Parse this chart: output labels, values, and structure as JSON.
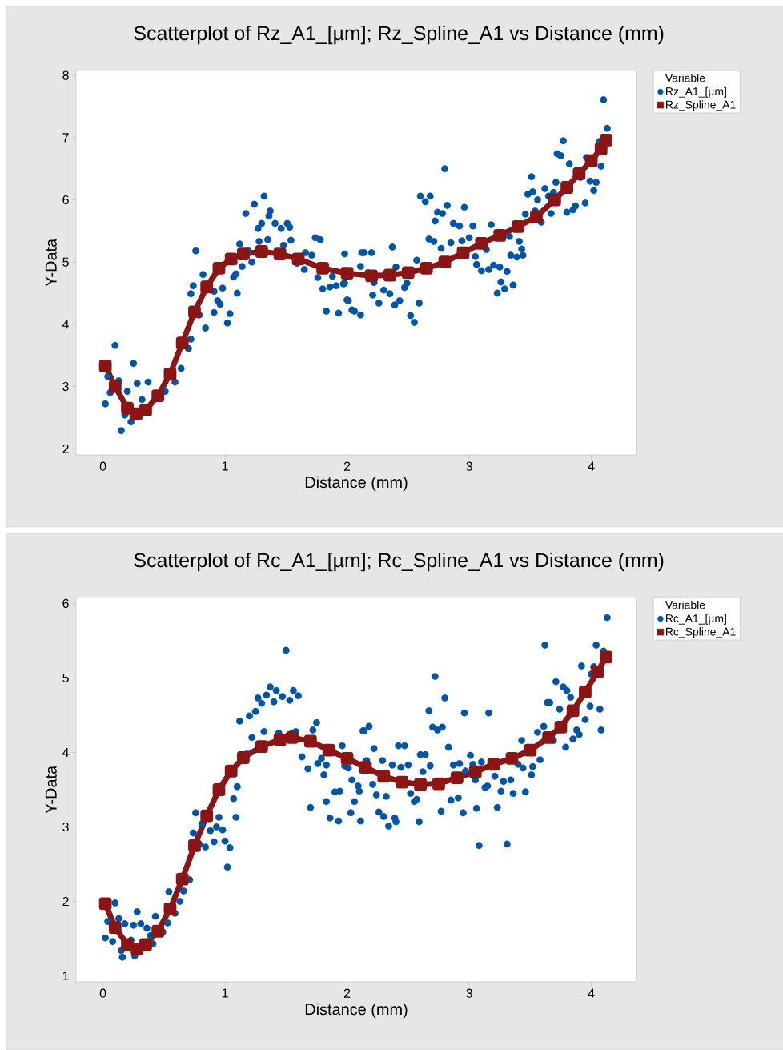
{
  "chart_data": [
    {
      "type": "scatter",
      "title": "Scatterplot of Rz_A1_[µm]; Rz_Spline_A1 vs Distance (mm)",
      "xlabel": "Distance (mm)",
      "ylabel": "Y-Data",
      "legend_title": "Variable",
      "legend": "top right",
      "xlim": [
        -0.22,
        4.37
      ],
      "ylim": [
        1.9,
        8.08
      ],
      "xticks": [
        0,
        1,
        2,
        3,
        4
      ],
      "yticks": [
        2,
        3,
        4,
        5,
        6,
        7,
        8
      ],
      "series": [
        {
          "name": "Rz_A1_[µm]",
          "color": "#0054a6",
          "marker": "circle",
          "x": [
            0.1,
            0.02,
            0.25,
            0.28,
            0.37,
            0.15,
            0.2,
            0.32,
            0.04,
            0.13,
            0.06,
            0.23,
            0.3,
            0.18,
            0.51,
            0.59,
            0.64,
            0.7,
            0.72,
            0.72,
            0.74,
            0.76,
            0.82,
            0.79,
            0.84,
            0.91,
            0.96,
            0.94,
            0.98,
            0.91,
            1.04,
            1.02,
            1.1,
            1.07,
            1.09,
            1.14,
            1.12,
            1.22,
            1.19,
            1.17,
            1.24,
            1.32,
            1.27,
            1.3,
            1.28,
            1.35,
            1.37,
            1.36,
            1.41,
            1.46,
            1.51,
            1.53,
            1.54,
            1.48,
            1.59,
            1.65,
            1.66,
            1.71,
            1.74,
            1.78,
            1.76,
            1.8,
            1.86,
            1.91,
            1.97,
            1.83,
            1.93,
            2.0,
            1.98,
            2.06,
            2.11,
            2.12,
            1.88,
            2.14,
            2.2,
            2.11,
            2.17,
            1.98,
            2.01,
            2.04,
            2.22,
            2.21,
            2.26,
            2.3,
            2.35,
            2.37,
            2.4,
            2.49,
            2.47,
            2.39,
            2.43,
            2.52,
            2.55,
            2.59,
            2.57,
            2.6,
            2.68,
            2.64,
            2.8,
            2.82,
            2.74,
            2.78,
            2.72,
            2.87,
            2.92,
            2.96,
            3.03,
            3.18,
            2.67,
            2.71,
            2.77,
            2.85,
            2.94,
            3.0,
            3.05,
            3.06,
            3.14,
            3.1,
            3.16,
            3.2,
            3.25,
            3.31,
            3.26,
            3.23,
            3.29,
            3.36,
            3.33,
            3.41,
            3.43,
            3.34,
            3.44,
            3.39,
            3.46,
            3.48,
            3.52,
            3.51,
            3.54,
            3.56,
            3.62,
            3.59,
            3.65,
            3.69,
            3.67,
            3.71,
            3.72,
            3.75,
            3.77,
            3.82,
            3.8,
            3.85,
            3.87,
            3.95,
            3.91,
            3.96,
            3.99,
            4.04,
            4.02,
            4.08,
            4.07,
            4.13,
            4.1
          ],
          "values": [
            3.66,
            2.72,
            3.37,
            3.05,
            3.07,
            2.29,
            2.92,
            2.79,
            3.16,
            3.09,
            2.9,
            2.43,
            2.51,
            2.54,
            2.92,
            3.07,
            3.29,
            3.61,
            3.76,
            4.49,
            4.62,
            5.18,
            4.8,
            4.15,
            3.94,
            4.19,
            4.32,
            4.38,
            4.58,
            4.53,
            4.17,
            4.02,
            4.5,
            4.76,
            4.81,
            4.93,
            5.29,
            5.0,
            5.18,
            5.78,
            5.93,
            6.06,
            5.54,
            5.62,
            5.33,
            5.36,
            5.82,
            5.74,
            5.62,
            5.54,
            5.62,
            5.56,
            5.35,
            5.27,
            4.98,
            4.88,
            5.15,
            5.11,
            5.39,
            5.36,
            4.75,
            4.57,
            4.6,
            4.62,
            4.65,
            4.21,
            4.18,
            4.39,
            5.13,
            4.21,
            4.15,
            5.15,
            4.77,
            5.15,
            5.15,
            4.93,
            4.83,
            4.66,
            4.38,
            4.23,
            4.67,
            4.47,
            4.34,
            4.55,
            4.49,
            5.24,
            4.92,
            4.66,
            4.59,
            4.31,
            4.38,
            4.14,
            4.03,
            4.34,
            5.03,
            6.06,
            6.06,
            5.97,
            6.5,
            5.91,
            5.8,
            5.78,
            5.66,
            5.62,
            5.58,
            5.88,
            5.58,
            5.6,
            5.37,
            5.33,
            5.22,
            5.31,
            5.34,
            5.39,
            5.09,
            4.96,
            5.2,
            4.86,
            4.88,
            4.95,
            4.92,
            4.85,
            4.68,
            4.5,
            4.57,
            4.63,
            5.41,
            5.33,
            5.21,
            5.11,
            5.11,
            5.08,
            5.77,
            6.09,
            6.13,
            6.37,
            5.82,
            6.0,
            6.18,
            5.64,
            6.06,
            6.12,
            5.78,
            6.28,
            6.74,
            6.71,
            6.95,
            6.58,
            5.8,
            5.84,
            5.9,
            5.95,
            6.36,
            6.68,
            6.3,
            6.28,
            6.15,
            6.54,
            6.94,
            7.15,
            7.61
          ]
        },
        {
          "name": "Rz_Spline_A1",
          "color": "#8b1414",
          "type": "line",
          "marker": "square",
          "x": [
            0.02,
            0.1,
            0.2,
            0.27,
            0.35,
            0.45,
            0.55,
            0.65,
            0.75,
            0.85,
            0.95,
            1.05,
            1.15,
            1.3,
            1.45,
            1.6,
            1.8,
            2.0,
            2.2,
            2.35,
            2.5,
            2.65,
            2.8,
            2.95,
            3.1,
            3.25,
            3.4,
            3.55,
            3.7,
            3.8,
            3.9,
            4.0,
            4.08,
            4.12
          ],
          "values": [
            3.33,
            3.0,
            2.65,
            2.56,
            2.62,
            2.85,
            3.2,
            3.7,
            4.2,
            4.6,
            4.9,
            5.05,
            5.13,
            5.17,
            5.13,
            5.05,
            4.9,
            4.82,
            4.78,
            4.79,
            4.83,
            4.9,
            5.0,
            5.15,
            5.3,
            5.43,
            5.57,
            5.73,
            6.0,
            6.2,
            6.42,
            6.63,
            6.82,
            6.96
          ]
        }
      ]
    },
    {
      "type": "scatter",
      "title": "Scatterplot of Rc_A1_[µm]; Rc_Spline_A1 vs Distance (mm)",
      "xlabel": "Distance (mm)",
      "ylabel": "Y-Data",
      "legend_title": "Variable",
      "legend": "top right",
      "xlim": [
        -0.22,
        4.37
      ],
      "ylim": [
        0.92,
        6.08
      ],
      "xticks": [
        0,
        1,
        2,
        3,
        4
      ],
      "yticks": [
        1,
        2,
        3,
        4,
        5,
        6
      ],
      "series": [
        {
          "name": "Rc_A1_[µm]",
          "color": "#0054a6",
          "marker": "circle",
          "x": [
            0.1,
            0.02,
            0.04,
            0.08,
            0.13,
            0.18,
            0.25,
            0.28,
            0.31,
            0.36,
            0.23,
            0.16,
            0.26,
            0.15,
            0.43,
            0.39,
            0.41,
            0.49,
            0.53,
            0.54,
            0.59,
            0.63,
            0.66,
            0.71,
            0.74,
            0.76,
            0.81,
            0.79,
            0.84,
            0.88,
            0.91,
            0.93,
            0.95,
            0.98,
            1.0,
            1.04,
            1.02,
            1.09,
            1.07,
            1.1,
            1.18,
            1.22,
            1.12,
            1.2,
            1.25,
            1.27,
            1.3,
            1.32,
            1.34,
            1.37,
            1.4,
            1.42,
            1.47,
            1.53,
            1.5,
            1.56,
            1.6,
            1.44,
            1.55,
            1.58,
            1.63,
            1.68,
            1.7,
            1.72,
            1.75,
            1.76,
            1.79,
            1.83,
            1.81,
            1.83,
            1.86,
            1.93,
            1.9,
            1.94,
            1.96,
            1.98,
            2.01,
            2.04,
            2.09,
            2.1,
            2.06,
            2.03,
            2.11,
            2.13,
            2.14,
            2.18,
            2.22,
            2.16,
            2.21,
            2.24,
            2.32,
            2.29,
            2.37,
            2.44,
            2.5,
            2.42,
            2.47,
            2.26,
            2.3,
            2.39,
            2.4,
            2.34,
            2.55,
            2.57,
            2.59,
            2.52,
            2.6,
            2.64,
            2.62,
            2.68,
            2.67,
            2.72,
            2.7,
            2.74,
            2.78,
            2.8,
            2.83,
            2.87,
            2.92,
            2.96,
            3.01,
            3.03,
            3.1,
            2.97,
            2.85,
            2.91,
            2.77,
            2.95,
            3.05,
            3.06,
            3.13,
            3.15,
            3.08,
            3.16,
            3.21,
            3.26,
            3.23,
            3.28,
            3.34,
            3.31,
            3.36,
            3.43,
            3.4,
            3.46,
            3.51,
            3.52,
            3.44,
            3.56,
            3.61,
            3.58,
            3.62,
            3.64,
            3.66,
            3.69,
            3.71,
            3.74,
            3.77,
            3.8,
            3.83,
            3.79,
            3.85,
            3.88,
            3.9,
            3.92,
            3.95,
            3.99,
            4.02,
            4.0,
            4.07,
            4.08,
            4.04,
            4.1,
            4.13
          ],
          "values": [
            1.98,
            1.51,
            1.73,
            1.46,
            1.77,
            1.7,
            1.68,
            1.86,
            1.7,
            1.64,
            1.48,
            1.25,
            1.27,
            1.34,
            1.8,
            1.54,
            1.43,
            1.59,
            1.71,
            2.13,
            1.84,
            2.0,
            2.14,
            2.29,
            2.92,
            3.19,
            3.04,
            2.77,
            2.73,
            2.95,
            2.8,
            3.0,
            3.13,
            2.96,
            2.81,
            2.72,
            2.46,
            3.13,
            3.38,
            3.54,
            3.98,
            4.2,
            4.42,
            4.49,
            4.55,
            4.73,
            4.66,
            4.28,
            4.77,
            4.88,
            4.68,
            4.83,
            4.75,
            4.7,
            5.37,
            4.83,
            4.76,
            4.26,
            4.26,
            4.28,
            3.94,
            3.78,
            3.26,
            4.3,
            4.4,
            3.85,
            3.92,
            3.83,
            3.7,
            3.34,
            3.12,
            3.08,
            3.47,
            3.48,
            4.09,
            3.82,
            3.79,
            3.63,
            3.55,
            3.48,
            3.34,
            3.19,
            3.08,
            4.29,
            4.29,
            4.35,
            4.05,
            3.89,
            3.57,
            3.43,
            3.41,
            3.89,
            3.83,
            3.8,
            3.83,
            4.09,
            4.09,
            3.2,
            3.14,
            3.12,
            3.07,
            3.01,
            3.34,
            3.37,
            3.07,
            3.45,
            3.97,
            3.97,
            3.74,
            3.82,
            4.56,
            5.02,
            4.34,
            4.3,
            4.34,
            4.73,
            4.07,
            3.83,
            3.85,
            4.53,
            3.96,
            3.84,
            3.87,
            3.75,
            3.36,
            3.39,
            3.21,
            3.19,
            3.63,
            3.25,
            3.53,
            3.55,
            2.75,
            4.53,
            3.68,
            3.48,
            3.26,
            3.61,
            3.63,
            2.77,
            3.45,
            4.16,
            3.84,
            3.47,
            3.7,
            3.81,
            3.79,
            4.27,
            4.35,
            3.9,
            5.44,
            4.67,
            4.67,
            4.16,
            4.95,
            4.58,
            4.88,
            4.83,
            4.74,
            4.07,
            4.18,
            4.3,
            4.24,
            5.16,
            4.44,
            4.62,
            5.15,
            5.05,
            4.58,
            4.3,
            5.44,
            5.36,
            5.81
          ]
        },
        {
          "name": "Rc_Spline_A1",
          "color": "#8b1414",
          "type": "line",
          "marker": "square",
          "x": [
            0.02,
            0.1,
            0.2,
            0.28,
            0.35,
            0.45,
            0.55,
            0.65,
            0.75,
            0.85,
            0.95,
            1.05,
            1.15,
            1.3,
            1.45,
            1.55,
            1.7,
            1.85,
            2.0,
            2.15,
            2.3,
            2.45,
            2.6,
            2.75,
            2.9,
            3.05,
            3.2,
            3.35,
            3.5,
            3.65,
            3.75,
            3.85,
            3.95,
            4.05,
            4.12
          ],
          "values": [
            1.97,
            1.65,
            1.42,
            1.36,
            1.42,
            1.6,
            1.9,
            2.3,
            2.75,
            3.15,
            3.5,
            3.75,
            3.93,
            4.08,
            4.17,
            4.2,
            4.15,
            4.03,
            3.92,
            3.8,
            3.68,
            3.6,
            3.57,
            3.58,
            3.66,
            3.74,
            3.84,
            3.92,
            4.03,
            4.2,
            4.34,
            4.56,
            4.81,
            5.08,
            5.28
          ]
        }
      ]
    }
  ]
}
